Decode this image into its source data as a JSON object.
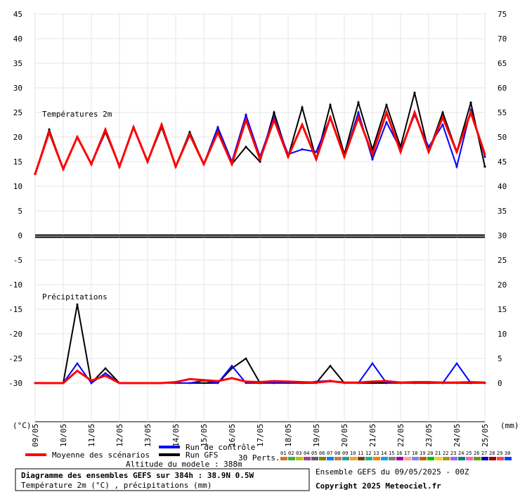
{
  "chart_data": {
    "type": "line",
    "title": "Diagramme des ensembles GEFS sur 384h : 38.9N 0.5W",
    "subtitle": "Température 2m (°C) , précipitations (mm)",
    "altitude": "Altitude du modele : 388m",
    "run_info": "Ensemble GEFS du 09/05/2025 - 00Z",
    "copyright": "Copyright 2025 Meteociel.fr",
    "panel_temp_label": "Températures 2m",
    "panel_precip_label": "Précipitations",
    "left_unit": "(°C)",
    "right_unit": "(mm)",
    "left_ticks": [
      "45",
      "40",
      "35",
      "30",
      "25",
      "20",
      "15",
      "10",
      "5",
      "0",
      "-5",
      "-10",
      "-15",
      "-20",
      "-25",
      "-30"
    ],
    "right_ticks": [
      "75",
      "70",
      "65",
      "60",
      "55",
      "50",
      "45",
      "40",
      "35",
      "30",
      "25",
      "20",
      "15",
      "10",
      "5",
      "0"
    ],
    "x_ticks": [
      "09/05",
      "10/05",
      "11/05",
      "12/05",
      "13/05",
      "14/05",
      "15/05",
      "16/05",
      "17/05",
      "18/05",
      "19/05",
      "20/05",
      "21/05",
      "22/05",
      "23/05",
      "24/05",
      "25/05"
    ],
    "legend": {
      "mean": "Moyenne des scénarios",
      "control": "Run de contrôle",
      "gfs": "Run GFS",
      "perts": "30 Perts.",
      "pert_labels": [
        "01",
        "02",
        "03",
        "04",
        "05",
        "06",
        "07",
        "08",
        "09",
        "10",
        "11",
        "12",
        "13",
        "14",
        "15",
        "16",
        "17",
        "18",
        "19",
        "20",
        "21",
        "22",
        "23",
        "24",
        "25",
        "26",
        "27",
        "28",
        "29",
        "30"
      ],
      "pert_colors": [
        "#e07020",
        "#40b040",
        "#c0c000",
        "#a040a0",
        "#606060",
        "#808000",
        "#0080ff",
        "#c08040",
        "#20a0a0",
        "#f0a030",
        "#804000",
        "#00c080",
        "#ff8000",
        "#00a0ff",
        "#808080",
        "#a000a0",
        "#ffa0a0",
        "#8080ff",
        "#c06000",
        "#00c000",
        "#ffd000",
        "#a0a000",
        "#a060ff",
        "#008080",
        "#ff60c0",
        "#60a000",
        "#0000c0",
        "#a00000",
        "#ff4040",
        "#0040ff"
      ],
      "mean_color": "#ff0000",
      "control_color": "#0000ff",
      "gfs_color": "#000000"
    },
    "x": [
      0,
      0.5,
      1,
      1.5,
      2,
      2.5,
      3,
      3.5,
      4,
      4.5,
      5,
      5.5,
      6,
      6.5,
      7,
      7.5,
      8,
      8.5,
      9,
      9.5,
      10,
      10.5,
      11,
      11.5,
      12,
      12.5,
      13,
      13.5,
      14,
      14.5,
      15,
      15.5,
      16
    ],
    "series": [
      {
        "name": "Moyenne des scénarios",
        "temp": [
          12.5,
          21,
          13.5,
          20,
          14.5,
          21.5,
          14,
          22,
          15,
          22.5,
          14,
          20.5,
          14.5,
          21,
          14.5,
          23.5,
          15.5,
          23.5,
          16,
          22.5,
          15.5,
          24,
          16,
          24,
          16.5,
          25,
          17,
          25,
          17,
          24,
          17,
          25,
          16.5
        ],
        "precip": [
          0,
          0,
          0,
          2.5,
          0.5,
          1.5,
          0,
          0,
          0,
          0,
          0.2,
          0.8,
          0.6,
          0.4,
          1,
          0.3,
          0.2,
          0.4,
          0.3,
          0.2,
          0.1,
          0.4,
          0.1,
          0.1,
          0.3,
          0.4,
          0.1,
          0.2,
          0.2,
          0.1,
          0.1,
          0.2,
          0.1
        ]
      },
      {
        "name": "Run de contrôle",
        "temp": [
          12.5,
          21,
          13.5,
          20,
          14.5,
          21.5,
          14,
          22,
          15,
          22.5,
          14,
          20.5,
          14.5,
          22,
          15,
          24.5,
          16,
          24,
          16.5,
          17.5,
          17,
          24,
          16,
          25,
          15.5,
          23,
          17.5,
          24.5,
          18,
          22.5,
          14,
          25.5,
          16
        ],
        "precip": [
          0,
          0,
          0,
          4,
          0,
          2,
          0,
          0,
          0,
          0,
          0,
          0,
          0.5,
          0,
          3.5,
          0,
          0,
          0,
          0,
          0,
          0.3,
          0.5,
          0,
          0,
          4,
          0,
          0,
          0,
          0,
          0,
          4,
          0,
          0
        ]
      },
      {
        "name": "Run GFS",
        "temp": [
          12.5,
          21.5,
          13.5,
          20,
          14.5,
          21,
          14,
          22,
          15,
          22,
          14,
          21,
          14.5,
          21.5,
          14.5,
          18,
          15,
          25,
          16,
          26,
          15.5,
          26.5,
          16.5,
          27,
          17.5,
          26.5,
          18,
          29,
          17,
          25,
          17,
          27,
          14
        ],
        "precip": [
          0,
          0,
          0,
          16,
          0,
          3,
          0,
          0,
          0,
          0,
          0,
          0,
          0,
          0,
          3,
          5,
          0,
          0,
          0,
          0,
          0,
          3.5,
          0,
          0,
          0,
          0,
          0,
          0,
          0,
          0,
          0,
          0,
          0
        ]
      }
    ]
  }
}
